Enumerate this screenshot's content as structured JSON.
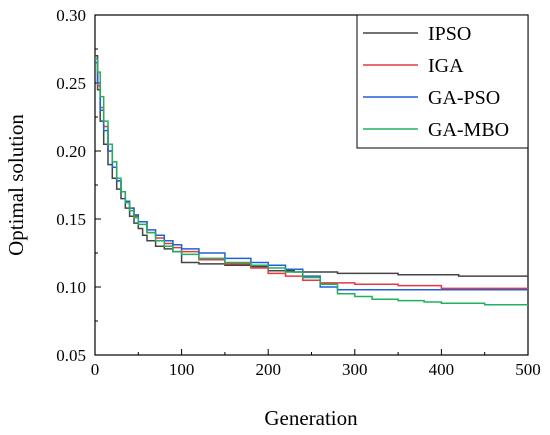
{
  "chart_data": {
    "type": "line",
    "title": "",
    "xlabel": "Generation",
    "ylabel": "Optimal solution",
    "xlim": [
      0,
      500
    ],
    "ylim": [
      0.05,
      0.3
    ],
    "xticks": [
      0,
      100,
      200,
      300,
      400,
      500
    ],
    "xtick_labels": [
      "0",
      "100",
      "200",
      "300",
      "400",
      "500"
    ],
    "yticks": [
      0.05,
      0.1,
      0.15,
      0.2,
      0.25,
      0.3
    ],
    "ytick_labels": [
      "0.05",
      "0.10",
      "0.15",
      "0.20",
      "0.25",
      "0.30"
    ],
    "grid": false,
    "legend_position": "top-right",
    "series": [
      {
        "name": "IPSO",
        "color": "#444444",
        "points": [
          [
            0,
            0.27
          ],
          [
            3,
            0.245
          ],
          [
            6,
            0.222
          ],
          [
            10,
            0.205
          ],
          [
            15,
            0.19
          ],
          [
            20,
            0.18
          ],
          [
            25,
            0.172
          ],
          [
            30,
            0.165
          ],
          [
            35,
            0.158
          ],
          [
            40,
            0.152
          ],
          [
            45,
            0.147
          ],
          [
            50,
            0.143
          ],
          [
            55,
            0.138
          ],
          [
            60,
            0.134
          ],
          [
            70,
            0.13
          ],
          [
            80,
            0.128
          ],
          [
            90,
            0.126
          ],
          [
            100,
            0.118
          ],
          [
            120,
            0.117
          ],
          [
            150,
            0.116
          ],
          [
            180,
            0.115
          ],
          [
            200,
            0.112
          ],
          [
            230,
            0.111
          ],
          [
            280,
            0.11
          ],
          [
            350,
            0.109
          ],
          [
            420,
            0.108
          ],
          [
            500,
            0.108
          ]
        ]
      },
      {
        "name": "IGA",
        "color": "#e8393f",
        "points": [
          [
            0,
            0.268
          ],
          [
            3,
            0.248
          ],
          [
            6,
            0.232
          ],
          [
            10,
            0.218
          ],
          [
            15,
            0.2
          ],
          [
            20,
            0.188
          ],
          [
            25,
            0.178
          ],
          [
            30,
            0.17
          ],
          [
            35,
            0.163
          ],
          [
            40,
            0.158
          ],
          [
            45,
            0.152
          ],
          [
            50,
            0.148
          ],
          [
            60,
            0.14
          ],
          [
            70,
            0.136
          ],
          [
            80,
            0.132
          ],
          [
            90,
            0.129
          ],
          [
            100,
            0.126
          ],
          [
            120,
            0.12
          ],
          [
            150,
            0.117
          ],
          [
            180,
            0.114
          ],
          [
            200,
            0.11
          ],
          [
            220,
            0.108
          ],
          [
            240,
            0.105
          ],
          [
            260,
            0.103
          ],
          [
            300,
            0.102
          ],
          [
            350,
            0.101
          ],
          [
            400,
            0.099
          ],
          [
            450,
            0.099
          ],
          [
            500,
            0.099
          ]
        ]
      },
      {
        "name": "GA-PSO",
        "color": "#2060d8",
        "points": [
          [
            0,
            0.265
          ],
          [
            3,
            0.25
          ],
          [
            6,
            0.23
          ],
          [
            10,
            0.215
          ],
          [
            15,
            0.2
          ],
          [
            20,
            0.188
          ],
          [
            25,
            0.178
          ],
          [
            30,
            0.17
          ],
          [
            35,
            0.163
          ],
          [
            40,
            0.158
          ],
          [
            45,
            0.153
          ],
          [
            50,
            0.148
          ],
          [
            60,
            0.142
          ],
          [
            70,
            0.138
          ],
          [
            80,
            0.134
          ],
          [
            90,
            0.131
          ],
          [
            100,
            0.128
          ],
          [
            120,
            0.125
          ],
          [
            150,
            0.121
          ],
          [
            180,
            0.118
          ],
          [
            200,
            0.116
          ],
          [
            220,
            0.113
          ],
          [
            240,
            0.108
          ],
          [
            260,
            0.1
          ],
          [
            280,
            0.098
          ],
          [
            300,
            0.098
          ],
          [
            350,
            0.098
          ],
          [
            400,
            0.098
          ],
          [
            450,
            0.098
          ],
          [
            500,
            0.098
          ]
        ]
      },
      {
        "name": "GA-MBO",
        "color": "#20b060",
        "points": [
          [
            0,
            0.268
          ],
          [
            3,
            0.258
          ],
          [
            6,
            0.24
          ],
          [
            10,
            0.222
          ],
          [
            15,
            0.205
          ],
          [
            20,
            0.192
          ],
          [
            25,
            0.18
          ],
          [
            30,
            0.17
          ],
          [
            35,
            0.162
          ],
          [
            40,
            0.156
          ],
          [
            45,
            0.151
          ],
          [
            50,
            0.146
          ],
          [
            60,
            0.14
          ],
          [
            70,
            0.134
          ],
          [
            80,
            0.13
          ],
          [
            90,
            0.126
          ],
          [
            100,
            0.124
          ],
          [
            120,
            0.121
          ],
          [
            150,
            0.118
          ],
          [
            180,
            0.116
          ],
          [
            200,
            0.114
          ],
          [
            220,
            0.111
          ],
          [
            240,
            0.107
          ],
          [
            260,
            0.102
          ],
          [
            280,
            0.095
          ],
          [
            300,
            0.093
          ],
          [
            320,
            0.091
          ],
          [
            350,
            0.09
          ],
          [
            380,
            0.089
          ],
          [
            400,
            0.088
          ],
          [
            450,
            0.087
          ],
          [
            500,
            0.087
          ]
        ]
      }
    ]
  }
}
